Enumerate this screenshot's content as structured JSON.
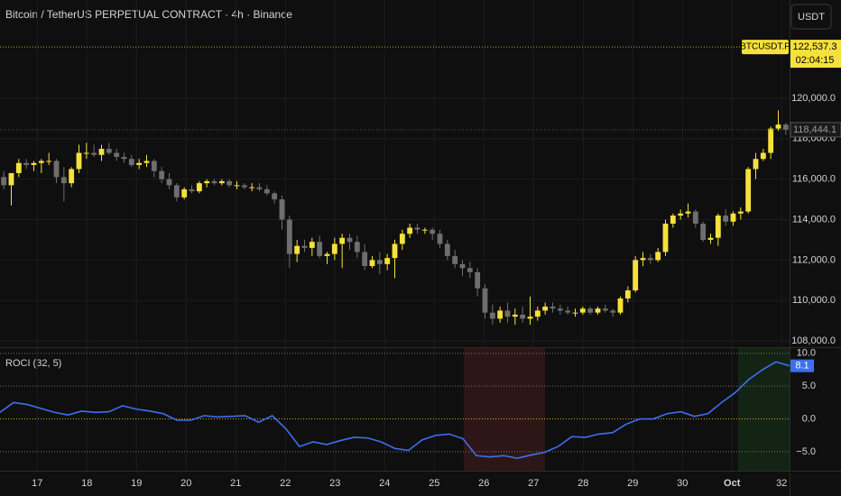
{
  "currency": "USDT",
  "chart_data": [
    {
      "type": "candlestick",
      "title": "Bitcoin / TetherUS PERPETUAL CONTRACT · 4h · Binance",
      "symbol": "BTCUSDT.P",
      "current_price": {
        "value": 122537.3,
        "label": "122,537.3"
      },
      "countdown": "02:04:15",
      "last_price": {
        "value": 118444.1,
        "label": "118,444.1"
      },
      "up_color": "#f5e13b",
      "down_color": "#6e6e6e",
      "grid": true,
      "ylim": [
        107690,
        124860
      ],
      "yticks": [
        {
          "value": 108000,
          "label": "108,000.0"
        },
        {
          "value": 110000,
          "label": "110,000.0"
        },
        {
          "value": 112000,
          "label": "112,000.0"
        },
        {
          "value": 114000,
          "label": "114,000.0"
        },
        {
          "value": 116000,
          "label": "116,000.0"
        },
        {
          "value": 118000,
          "label": "118,000.0"
        },
        {
          "value": 120000,
          "label": "120,000.0"
        }
      ],
      "xlim": [
        16.25,
        32.16
      ],
      "xticks": [
        17,
        18,
        19,
        20,
        21,
        22,
        23,
        24,
        25,
        26,
        27,
        28,
        29,
        30,
        {
          "value": 31,
          "label": "Oct"
        },
        32
      ],
      "candles": [
        [
          116100,
          116400,
          115500,
          115700
        ],
        [
          115700,
          116300,
          114700,
          116300
        ],
        [
          116300,
          117000,
          116100,
          116800
        ],
        [
          116800,
          117000,
          116500,
          116700
        ],
        [
          116700,
          116900,
          116400,
          116800
        ],
        [
          116800,
          117000,
          116300,
          116900
        ],
        [
          116900,
          117300,
          116700,
          116900
        ],
        [
          116900,
          117000,
          115800,
          116100
        ],
        [
          116100,
          116600,
          114900,
          115800
        ],
        [
          115800,
          116600,
          115600,
          116500
        ],
        [
          116500,
          117700,
          116300,
          117300
        ],
        [
          117300,
          117800,
          117000,
          117300
        ],
        [
          117300,
          117700,
          117100,
          117200
        ],
        [
          117200,
          117700,
          116900,
          117500
        ],
        [
          117500,
          117800,
          117200,
          117300
        ],
        [
          117300,
          117500,
          116900,
          117100
        ],
        [
          117100,
          117300,
          116800,
          117000
        ],
        [
          117000,
          117200,
          116600,
          116700
        ],
        [
          116700,
          117000,
          116500,
          116800
        ],
        [
          116800,
          117200,
          116600,
          116900
        ],
        [
          116900,
          117000,
          116100,
          116400
        ],
        [
          116400,
          116600,
          115800,
          116000
        ],
        [
          116000,
          116300,
          115500,
          115700
        ],
        [
          115700,
          115800,
          114900,
          115100
        ],
        [
          115100,
          115600,
          115000,
          115500
        ],
        [
          115500,
          115700,
          115300,
          115400
        ],
        [
          115400,
          115900,
          115300,
          115800
        ],
        [
          115800,
          116000,
          115600,
          115900
        ],
        [
          115900,
          116000,
          115700,
          115800
        ],
        [
          115800,
          116000,
          115700,
          115900
        ],
        [
          115900,
          116000,
          115600,
          115700
        ],
        [
          115700,
          115900,
          115500,
          115700
        ],
        [
          115700,
          115800,
          115500,
          115600
        ],
        [
          115600,
          115800,
          115400,
          115600
        ],
        [
          115600,
          115800,
          115400,
          115500
        ],
        [
          115500,
          115700,
          115200,
          115300
        ],
        [
          115300,
          115400,
          114800,
          115000
        ],
        [
          115000,
          115200,
          113500,
          114000
        ],
        [
          114000,
          114200,
          111600,
          112300
        ],
        [
          112300,
          113000,
          111900,
          112700
        ],
        [
          112700,
          113000,
          112400,
          112600
        ],
        [
          112600,
          113100,
          112200,
          112900
        ],
        [
          112900,
          113200,
          112100,
          112200
        ],
        [
          112200,
          112400,
          111800,
          112300
        ],
        [
          112300,
          113100,
          112000,
          112800
        ],
        [
          112800,
          113300,
          111600,
          113100
        ],
        [
          113100,
          113300,
          112500,
          112900
        ],
        [
          112900,
          113200,
          112100,
          112400
        ],
        [
          112400,
          112800,
          111500,
          111700
        ],
        [
          111700,
          112200,
          111600,
          112000
        ],
        [
          112000,
          112400,
          111300,
          111800
        ],
        [
          111800,
          112300,
          111500,
          112100
        ],
        [
          112100,
          113000,
          111100,
          112800
        ],
        [
          112800,
          113500,
          112500,
          113300
        ],
        [
          113300,
          113800,
          113100,
          113600
        ],
        [
          113600,
          113800,
          113300,
          113500
        ],
        [
          113500,
          113600,
          113300,
          113500
        ],
        [
          113500,
          113600,
          113000,
          113300
        ],
        [
          113300,
          113500,
          112600,
          112800
        ],
        [
          112800,
          113000,
          112000,
          112200
        ],
        [
          112200,
          112500,
          111600,
          111800
        ],
        [
          111800,
          112000,
          111200,
          111600
        ],
        [
          111600,
          111900,
          111100,
          111400
        ],
        [
          111400,
          111600,
          110200,
          110600
        ],
        [
          110600,
          110800,
          109100,
          109400
        ],
        [
          109400,
          109800,
          108800,
          109100
        ],
        [
          109100,
          109700,
          108900,
          109500
        ],
        [
          109500,
          109900,
          108900,
          109200
        ],
        [
          109200,
          109600,
          108800,
          109300
        ],
        [
          109300,
          109700,
          108900,
          109100
        ],
        [
          109100,
          110200,
          108800,
          109200
        ],
        [
          109200,
          109700,
          109000,
          109500
        ],
        [
          109500,
          109900,
          109300,
          109700
        ],
        [
          109700,
          109900,
          109400,
          109600
        ],
        [
          109600,
          109800,
          109300,
          109500
        ],
        [
          109500,
          109700,
          109300,
          109400
        ],
        [
          109400,
          109600,
          109200,
          109400
        ],
        [
          109400,
          109700,
          109300,
          109600
        ],
        [
          109600,
          109700,
          109300,
          109400
        ],
        [
          109400,
          109700,
          109300,
          109600
        ],
        [
          109600,
          109800,
          109400,
          109500
        ],
        [
          109500,
          109600,
          109200,
          109400
        ],
        [
          109400,
          110200,
          109300,
          110100
        ],
        [
          110100,
          110700,
          109900,
          110500
        ],
        [
          110500,
          112200,
          110400,
          112000
        ],
        [
          112000,
          112400,
          111700,
          112100
        ],
        [
          112100,
          112300,
          111800,
          112000
        ],
        [
          112000,
          112600,
          111900,
          112400
        ],
        [
          112400,
          114000,
          112200,
          113800
        ],
        [
          113800,
          114300,
          113600,
          114200
        ],
        [
          114200,
          114500,
          114000,
          114300
        ],
        [
          114300,
          114800,
          114100,
          114400
        ],
        [
          114400,
          114500,
          113600,
          113800
        ],
        [
          113800,
          113900,
          112900,
          113000
        ],
        [
          113000,
          113300,
          112800,
          113100
        ],
        [
          113100,
          114300,
          112700,
          114200
        ],
        [
          114200,
          114500,
          113700,
          113900
        ],
        [
          113900,
          114400,
          113700,
          114300
        ],
        [
          114300,
          114600,
          114000,
          114400
        ],
        [
          114400,
          116600,
          114300,
          116500
        ],
        [
          116500,
          117300,
          116000,
          117000
        ],
        [
          117000,
          117500,
          116900,
          117300
        ],
        [
          117300,
          118600,
          117000,
          118500
        ],
        [
          118500,
          119400,
          118400,
          118700
        ],
        [
          118700,
          118800,
          118200,
          118444.1
        ]
      ]
    },
    {
      "type": "line",
      "title": "ROCI (32, 5)",
      "color": "#3d6ff0",
      "zero_color": "#e0a526",
      "level_color": "#8a8a8a",
      "ylim": [
        -7.9,
        10.8
      ],
      "yticks": [
        {
          "value": 10,
          "label": "10.0"
        },
        {
          "value": 5,
          "label": "5.0"
        },
        {
          "value": 0,
          "label": "0.0"
        },
        {
          "value": -5,
          "label": "−5.0"
        }
      ],
      "values": [
        1.0,
        2.5,
        2.2,
        1.6,
        1.0,
        0.6,
        1.2,
        1.0,
        1.1,
        2.0,
        1.5,
        1.2,
        0.8,
        -0.2,
        -0.2,
        0.5,
        0.3,
        0.4,
        0.5,
        -0.5,
        0.5,
        -1.5,
        -4.2,
        -3.5,
        -3.9,
        -3.3,
        -2.8,
        -2.9,
        -3.5,
        -4.5,
        -4.8,
        -3.2,
        -2.5,
        -2.3,
        -3.0,
        -5.6,
        -5.8,
        -5.6,
        -6.0,
        -5.5,
        -5.1,
        -4.2,
        -2.7,
        -2.8,
        -2.3,
        -2.1,
        -0.8,
        0.0,
        0.0,
        0.8,
        1.1,
        0.4,
        0.8,
        2.5,
        4.0,
        6.0,
        7.5,
        8.7,
        8.1
      ]
    }
  ]
}
